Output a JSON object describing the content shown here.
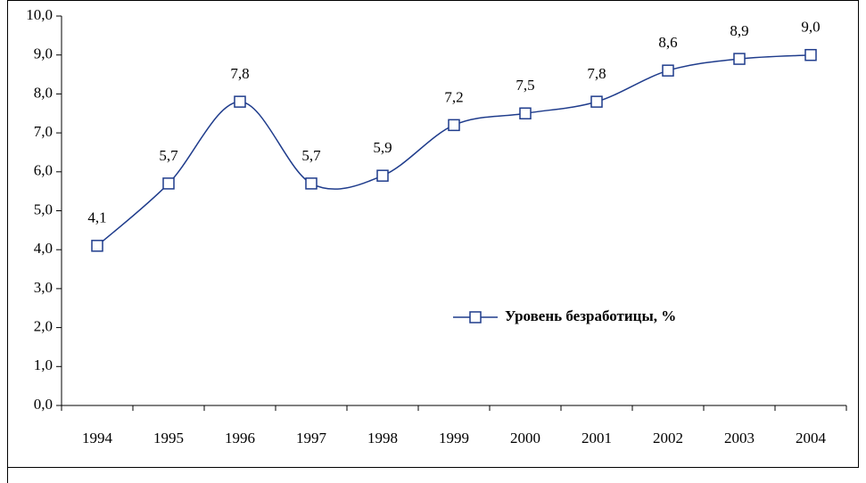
{
  "chart_data": {
    "type": "line",
    "categories": [
      "1994",
      "1995",
      "1996",
      "1997",
      "1998",
      "1999",
      "2000",
      "2001",
      "2002",
      "2003",
      "2004"
    ],
    "series": [
      {
        "name": "Уровень безработицы, %",
        "color": "#1f3c8c",
        "values": [
          4.1,
          5.7,
          7.8,
          5.7,
          5.9,
          7.2,
          7.5,
          7.8,
          8.6,
          8.9,
          9.0
        ],
        "value_labels": [
          "4,1",
          "5,7",
          "7,8",
          "5,7",
          "5,9",
          "7,2",
          "7,5",
          "7,8",
          "8,6",
          "8,9",
          "9,0"
        ]
      }
    ],
    "ylim": [
      0,
      10
    ],
    "yticks": [
      {
        "value": 0,
        "label": "0,0"
      },
      {
        "value": 1,
        "label": "1,0"
      },
      {
        "value": 2,
        "label": "2,0"
      },
      {
        "value": 3,
        "label": "3,0"
      },
      {
        "value": 4,
        "label": "4,0"
      },
      {
        "value": 5,
        "label": "5,0"
      },
      {
        "value": 6,
        "label": "6,0"
      },
      {
        "value": 7,
        "label": "7,0"
      },
      {
        "value": 8,
        "label": "8,0"
      },
      {
        "value": 9,
        "label": "9,0"
      },
      {
        "value": 10,
        "label": "10,0"
      }
    ],
    "smooth": true
  }
}
